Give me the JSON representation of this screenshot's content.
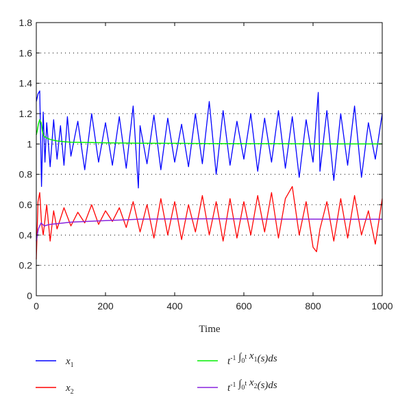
{
  "chart_data": {
    "type": "line",
    "title": "",
    "xlabel": "Time",
    "ylabel": "",
    "xlim": [
      0,
      1000
    ],
    "ylim": [
      0,
      1.8
    ],
    "xticks": [
      0,
      200,
      400,
      600,
      800,
      1000
    ],
    "xtick_labels": [
      "0",
      "200",
      "400",
      "600",
      "800",
      "1000"
    ],
    "yticks": [
      0,
      0.2,
      0.4,
      0.6,
      0.8,
      1,
      1.2,
      1.4,
      1.6,
      1.8
    ],
    "ytick_labels": [
      "0",
      "0.2",
      "0.4",
      "0.6",
      "0.8",
      "1",
      "1.2",
      "1.4",
      "1.6",
      "1.8"
    ],
    "grid": "horizontal-dotted",
    "legend_position": "below",
    "series": [
      {
        "name": "x1",
        "legend_label": "x_1",
        "color": "#0000ff",
        "x": [
          0,
          5,
          10,
          15,
          20,
          25,
          30,
          40,
          50,
          60,
          70,
          80,
          90,
          100,
          120,
          140,
          160,
          180,
          200,
          220,
          240,
          260,
          280,
          295,
          300,
          320,
          340,
          360,
          380,
          400,
          420,
          440,
          460,
          480,
          500,
          520,
          540,
          560,
          580,
          600,
          620,
          640,
          660,
          680,
          700,
          720,
          740,
          760,
          780,
          800,
          815,
          820,
          840,
          860,
          880,
          900,
          920,
          940,
          960,
          980,
          1000
        ],
        "y": [
          1.28,
          1.33,
          1.35,
          0.72,
          1.21,
          0.88,
          1.14,
          0.85,
          1.16,
          0.9,
          1.12,
          0.86,
          1.18,
          0.92,
          1.15,
          0.83,
          1.2,
          0.88,
          1.14,
          0.86,
          1.18,
          0.84,
          1.25,
          0.71,
          1.12,
          0.87,
          1.19,
          0.83,
          1.17,
          0.88,
          1.13,
          0.85,
          1.2,
          0.87,
          1.28,
          0.8,
          1.22,
          0.86,
          1.15,
          0.9,
          1.2,
          0.82,
          1.17,
          0.88,
          1.22,
          0.84,
          1.18,
          0.78,
          1.16,
          0.88,
          1.34,
          0.82,
          1.22,
          0.76,
          1.2,
          0.86,
          1.25,
          0.78,
          1.14,
          0.9,
          1.2
        ]
      },
      {
        "name": "x2",
        "legend_label": "x_2",
        "color": "#ff0000",
        "x": [
          0,
          5,
          10,
          15,
          20,
          30,
          40,
          50,
          60,
          80,
          100,
          120,
          140,
          160,
          180,
          200,
          220,
          240,
          260,
          280,
          300,
          320,
          340,
          360,
          380,
          400,
          420,
          440,
          460,
          480,
          500,
          520,
          540,
          560,
          580,
          600,
          620,
          640,
          660,
          680,
          700,
          720,
          740,
          760,
          780,
          800,
          810,
          820,
          840,
          860,
          880,
          900,
          920,
          940,
          960,
          980,
          1000
        ],
        "y": [
          0.24,
          0.62,
          0.68,
          0.48,
          0.4,
          0.6,
          0.36,
          0.56,
          0.44,
          0.58,
          0.46,
          0.55,
          0.48,
          0.6,
          0.47,
          0.56,
          0.49,
          0.58,
          0.45,
          0.62,
          0.42,
          0.6,
          0.38,
          0.64,
          0.4,
          0.62,
          0.37,
          0.6,
          0.42,
          0.66,
          0.4,
          0.62,
          0.36,
          0.64,
          0.38,
          0.62,
          0.4,
          0.66,
          0.42,
          0.68,
          0.38,
          0.64,
          0.72,
          0.4,
          0.62,
          0.32,
          0.29,
          0.44,
          0.62,
          0.36,
          0.64,
          0.38,
          0.66,
          0.4,
          0.56,
          0.34,
          0.64
        ]
      },
      {
        "name": "mean_x1",
        "legend_label": "t^-1 ∫_0^t x_1(s)ds",
        "color": "#00ee00",
        "x": [
          0,
          3,
          6,
          10,
          14,
          18,
          22,
          30,
          40,
          60,
          80,
          100,
          150,
          200,
          300,
          400,
          500,
          600,
          700,
          800,
          900,
          1000
        ],
        "y": [
          1.06,
          1.09,
          1.13,
          1.16,
          1.14,
          1.08,
          1.05,
          1.04,
          1.03,
          1.02,
          1.015,
          1.012,
          1.01,
          1.008,
          1.005,
          1.004,
          1.003,
          1.002,
          1.002,
          1.001,
          1.0,
          1.0
        ]
      },
      {
        "name": "mean_x2",
        "legend_label": "t^-1 ∫_0^t x_2(s)ds",
        "color": "#8822dd",
        "x": [
          0,
          3,
          6,
          10,
          14,
          18,
          24,
          30,
          40,
          60,
          80,
          100,
          150,
          200,
          250,
          300,
          400,
          500,
          600,
          700,
          800,
          900,
          1000
        ],
        "y": [
          0.36,
          0.4,
          0.44,
          0.46,
          0.48,
          0.47,
          0.46,
          0.465,
          0.47,
          0.475,
          0.48,
          0.485,
          0.49,
          0.495,
          0.5,
          0.505,
          0.506,
          0.507,
          0.506,
          0.505,
          0.505,
          0.504,
          0.504
        ]
      }
    ]
  }
}
